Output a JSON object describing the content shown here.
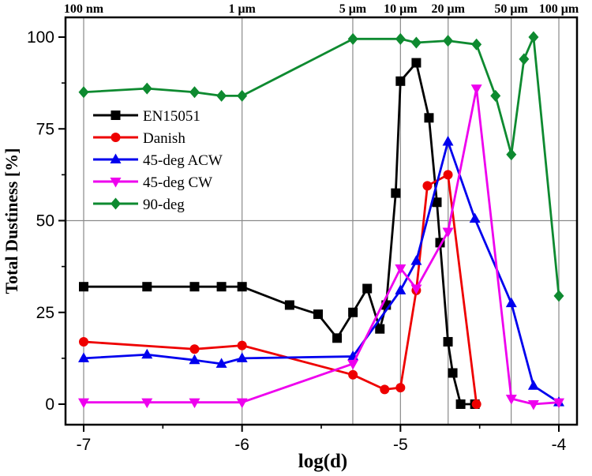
{
  "chart_data": {
    "type": "line",
    "title": "",
    "xlabel": "log(d)",
    "ylabel": "Total Dustiness [%]",
    "xlim": [
      -7.115,
      -3.885
    ],
    "ylim": [
      -5.6,
      105.4
    ],
    "x_ticks": [
      {
        "value": -7,
        "label": "-7"
      },
      {
        "value": -6,
        "label": "-6"
      },
      {
        "value": -5,
        "label": "-5"
      },
      {
        "value": -4,
        "label": "-4"
      }
    ],
    "x_minor_ticks": [
      -6.5,
      -5.5,
      -4.5
    ],
    "y_ticks": [
      {
        "value": 0,
        "label": "0"
      },
      {
        "value": 25,
        "label": "25"
      },
      {
        "value": 50,
        "label": "50"
      },
      {
        "value": 75,
        "label": "75"
      },
      {
        "value": 100,
        "label": "100"
      }
    ],
    "y_minor_ticks": [
      12.5,
      37.5,
      62.5,
      87.5
    ],
    "grid": {
      "vertical_at_top_labels": true,
      "horizontal_values": [
        50
      ],
      "color": "#8a8a8a"
    },
    "top_axis_labels": [
      {
        "text": "100 nm",
        "log": -7
      },
      {
        "text": "1 μm",
        "log": -6
      },
      {
        "text": "5 μm",
        "log": -5.301
      },
      {
        "text": "10 μm",
        "log": -5
      },
      {
        "text": "20 μm",
        "log": -4.699
      },
      {
        "text": "50 μm",
        "log": -4.301
      },
      {
        "text": "100 μm",
        "log": -4
      }
    ],
    "legend_position": "upper-left-inside",
    "series": [
      {
        "name": "EN15051",
        "color": "#000000",
        "marker": "square",
        "points": [
          [
            -7,
            32
          ],
          [
            -6.6,
            32
          ],
          [
            -6.3,
            32
          ],
          [
            -6.13,
            32
          ],
          [
            -6,
            32
          ],
          [
            -5.7,
            27
          ],
          [
            -5.52,
            24.5
          ],
          [
            -5.4,
            18
          ],
          [
            -5.3,
            25
          ],
          [
            -5.21,
            31.5
          ],
          [
            -5.13,
            20.5
          ],
          [
            -5.09,
            27
          ],
          [
            -5.03,
            57.5
          ],
          [
            -5,
            88
          ],
          [
            -4.9,
            93
          ],
          [
            -4.82,
            78
          ],
          [
            -4.77,
            55
          ],
          [
            -4.75,
            44
          ],
          [
            -4.7,
            17
          ],
          [
            -4.67,
            8.5
          ],
          [
            -4.62,
            0
          ],
          [
            -4.53,
            0
          ]
        ]
      },
      {
        "name": "Danish",
        "color": "#ee0000",
        "marker": "circle",
        "points": [
          [
            -7,
            17
          ],
          [
            -6.3,
            15
          ],
          [
            -6,
            16
          ],
          [
            -5.3,
            8
          ],
          [
            -5.1,
            4
          ],
          [
            -5,
            4.5
          ],
          [
            -4.9,
            31
          ],
          [
            -4.83,
            59.5
          ],
          [
            -4.7,
            62.5
          ],
          [
            -4.52,
            0
          ]
        ]
      },
      {
        "name": "45-deg ACW",
        "color": "#0000ee",
        "marker": "triangle-up",
        "points": [
          [
            -7,
            12.5
          ],
          [
            -6.6,
            13.5
          ],
          [
            -6.3,
            12
          ],
          [
            -6.13,
            11
          ],
          [
            -6,
            12.5
          ],
          [
            -5.3,
            13
          ],
          [
            -5,
            31
          ],
          [
            -4.9,
            39
          ],
          [
            -4.7,
            71.5
          ],
          [
            -4.53,
            50.5
          ],
          [
            -4.3,
            27.5
          ],
          [
            -4.16,
            5
          ],
          [
            -4,
            0.5
          ]
        ]
      },
      {
        "name": "45-deg CW",
        "color": "#ee00ee",
        "marker": "triangle-down",
        "points": [
          [
            -7,
            0.5
          ],
          [
            -6.6,
            0.5
          ],
          [
            -6.3,
            0.5
          ],
          [
            -6,
            0.5
          ],
          [
            -5.3,
            11
          ],
          [
            -5,
            37
          ],
          [
            -4.9,
            31.5
          ],
          [
            -4.7,
            47
          ],
          [
            -4.52,
            86
          ],
          [
            -4.3,
            1.5
          ],
          [
            -4.16,
            0
          ],
          [
            -4,
            0.5
          ]
        ]
      },
      {
        "name": "90-deg",
        "color": "#0e8a30",
        "marker": "diamond",
        "points": [
          [
            -7,
            85
          ],
          [
            -6.6,
            86
          ],
          [
            -6.3,
            85
          ],
          [
            -6.13,
            84
          ],
          [
            -6,
            84
          ],
          [
            -5.3,
            99.5
          ],
          [
            -5,
            99.5
          ],
          [
            -4.9,
            98.5
          ],
          [
            -4.7,
            99
          ],
          [
            -4.52,
            98
          ],
          [
            -4.4,
            84
          ],
          [
            -4.3,
            68
          ],
          [
            -4.22,
            94
          ],
          [
            -4.16,
            100
          ],
          [
            -4,
            29.5
          ]
        ]
      }
    ]
  }
}
